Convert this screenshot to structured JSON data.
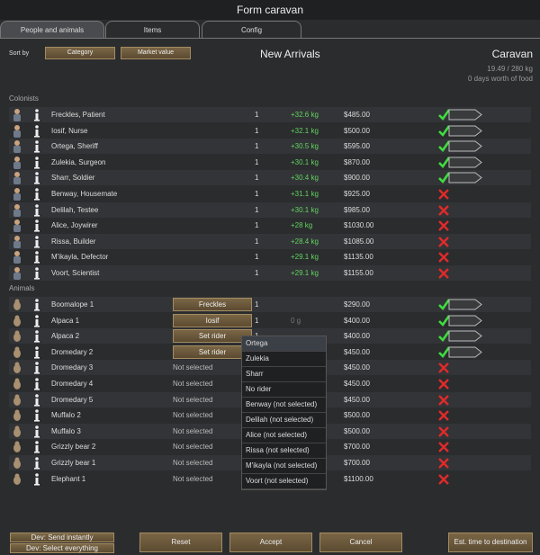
{
  "title": "Form caravan",
  "tabs": [
    "People and animals",
    "Items",
    "Config"
  ],
  "sort": {
    "label": "Sort by",
    "buttons": [
      "Category",
      "Market value"
    ]
  },
  "header": {
    "left": "New Arrivals",
    "right": "Caravan",
    "mass": "19.49 / 280 kg",
    "food": "0 days worth of food"
  },
  "sections": [
    {
      "label": "Colonists",
      "kind": "person",
      "rows": [
        {
          "name": "Freckles, Patient",
          "count": "1",
          "mass": "+32.6 kg",
          "value": "$485.00",
          "selected": true
        },
        {
          "name": "Iosif, Nurse",
          "count": "1",
          "mass": "+32.1 kg",
          "value": "$500.00",
          "selected": true
        },
        {
          "name": "Ortega, Sheriff",
          "count": "1",
          "mass": "+30.5 kg",
          "value": "$595.00",
          "selected": true
        },
        {
          "name": "Zulekia, Surgeon",
          "count": "1",
          "mass": "+30.1 kg",
          "value": "$870.00",
          "selected": true
        },
        {
          "name": "Sharr, Soldier",
          "count": "1",
          "mass": "+30.4 kg",
          "value": "$900.00",
          "selected": true
        },
        {
          "name": "Benway, Housemate",
          "count": "1",
          "mass": "+31.1 kg",
          "value": "$925.00",
          "selected": false
        },
        {
          "name": "Delilah, Testee",
          "count": "1",
          "mass": "+30.1 kg",
          "value": "$985.00",
          "selected": false
        },
        {
          "name": "Alice, Joywirer",
          "count": "1",
          "mass": "+28 kg",
          "value": "$1030.00",
          "selected": false
        },
        {
          "name": "Rissa, Builder",
          "count": "1",
          "mass": "+28.4 kg",
          "value": "$1085.00",
          "selected": false
        },
        {
          "name": "M'ikayla, Defector",
          "count": "1",
          "mass": "+29.1 kg",
          "value": "$1135.00",
          "selected": false
        },
        {
          "name": "Voort, Scientist",
          "count": "1",
          "mass": "+29.1 kg",
          "value": "$1155.00",
          "selected": false
        }
      ]
    },
    {
      "label": "Animals",
      "kind": "animal",
      "rows": [
        {
          "name": "Boomalope 1",
          "rider": "Freckles",
          "rider_button": true,
          "count": "1",
          "value": "$290.00",
          "selected": true
        },
        {
          "name": "Alpaca 1",
          "rider": "Iosif",
          "rider_button": true,
          "count": "1",
          "mass": "0 g",
          "mass_muted": true,
          "value": "$400.00",
          "selected": true
        },
        {
          "name": "Alpaca 2",
          "rider": "Set rider",
          "rider_button": true,
          "count": "1",
          "value": "$400.00",
          "selected": true
        },
        {
          "name": "Dromedary 2",
          "rider": "Set rider",
          "rider_button": true,
          "value": "$450.00",
          "selected": true
        },
        {
          "name": "Dromedary 3",
          "rider": "Not selected",
          "value": "$450.00",
          "selected": false
        },
        {
          "name": "Dromedary 4",
          "rider": "Not selected",
          "value": "$450.00",
          "selected": false
        },
        {
          "name": "Dromedary 5",
          "rider": "Not selected",
          "value": "$450.00",
          "selected": false
        },
        {
          "name": "Muffalo 2",
          "rider": "Not selected",
          "value": "$500.00",
          "selected": false
        },
        {
          "name": "Muffalo 3",
          "rider": "Not selected",
          "value": "$500.00",
          "selected": false
        },
        {
          "name": "Grizzly bear 2",
          "rider": "Not selected",
          "value": "$700.00",
          "selected": false
        },
        {
          "name": "Grizzly bear 1",
          "rider": "Not selected",
          "value": "$700.00",
          "selected": false
        },
        {
          "name": "Elephant 1",
          "rider": "Not selected",
          "value": "$1100.00",
          "selected": false
        }
      ]
    }
  ],
  "dropdown": [
    "Ortega",
    "Zulekia",
    "Sharr",
    "No rider",
    "Benway (not selected)",
    "Delilah (not selected)",
    "Alice (not selected)",
    "Rissa (not selected)",
    "M'ikayla (not selected)",
    "Voort (not selected)"
  ],
  "dev_buttons": [
    "Dev: Send instantly",
    "Dev: Select everything"
  ],
  "buttons": [
    "Reset",
    "Accept",
    "Cancel"
  ],
  "est_button": "Est. time to destination"
}
